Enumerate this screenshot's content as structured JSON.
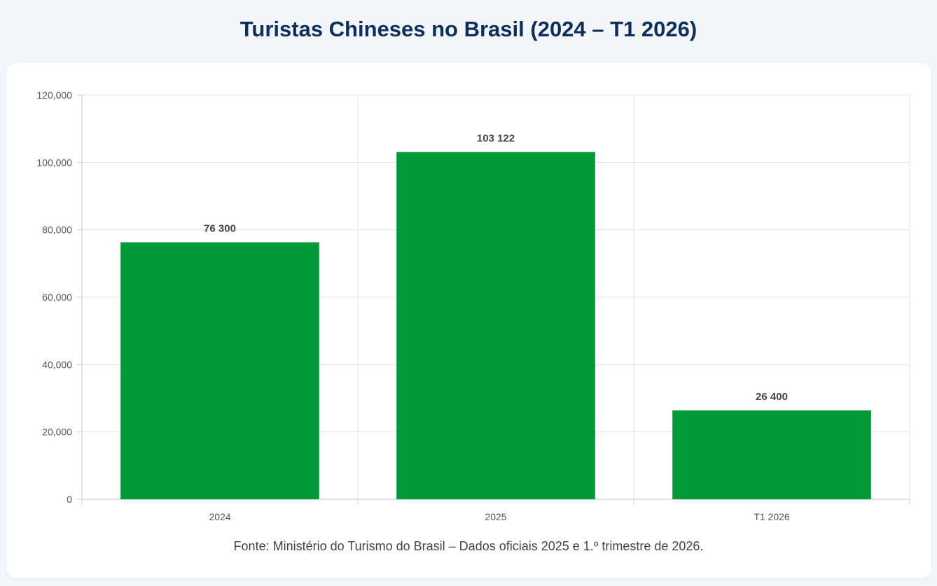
{
  "title": "Turistas Chineses no Brasil (2024 – T1 2026)",
  "source_note": "Fonte: Ministério do Turismo do Brasil – Dados oficiais 2025 e 1.º trimestre de 2026.",
  "colors": {
    "bar": "#009a3a",
    "title": "#0d2f5e",
    "grid": "#e3e3e3",
    "axis": "#cfcfcf"
  },
  "chart_data": {
    "type": "bar",
    "title": "Turistas Chineses no Brasil (2024 – T1 2026)",
    "categories": [
      "2024",
      "2025",
      "T1 2026"
    ],
    "values": [
      76300,
      103122,
      26400
    ],
    "value_labels": [
      "76 300",
      "103 122",
      "26 400"
    ],
    "xlabel": "",
    "ylabel": "",
    "ylim": [
      0,
      120000
    ],
    "yticks": [
      0,
      20000,
      40000,
      60000,
      80000,
      100000,
      120000
    ],
    "ytick_labels": [
      "0",
      "20,000",
      "40,000",
      "60,000",
      "80,000",
      "100,000",
      "120,000"
    ],
    "grid": true,
    "legend": "none"
  }
}
